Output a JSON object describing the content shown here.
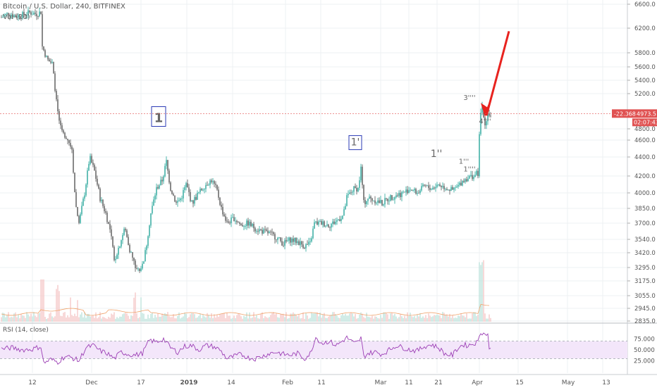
{
  "header": {
    "symbol_line": "Bitcoin / U.S. Dollar, 240, BITFINEX",
    "volume_label": "Vol (20)",
    "rsi_label": "RSI (14, close)"
  },
  "chart_data": {
    "type": "candlestick",
    "price_axis": {
      "ticks": [
        "6600.0",
        "6200.0",
        "5800.0",
        "5600.0",
        "5400.0",
        "5200.0",
        "4800.0",
        "4600.0",
        "4400.0",
        "4200.0",
        "4000.0",
        "3850.0",
        "3700.0",
        "3540.0",
        "3420.0",
        "3295.0",
        "3175.0",
        "3055.0",
        "2945.0",
        "2835.0"
      ]
    },
    "time_axis": {
      "ticks": [
        "12",
        "Dec",
        "17",
        "2019",
        "14",
        "Feb",
        "11",
        "Mar",
        "11",
        "21",
        "Apr",
        "15",
        "May",
        "13"
      ]
    },
    "price_path": [
      [
        0,
        6380
      ],
      [
        10,
        6450
      ],
      [
        20,
        6400
      ],
      [
        30,
        6420
      ],
      [
        40,
        6460
      ],
      [
        50,
        6440
      ],
      [
        56,
        6470
      ],
      [
        58,
        5900
      ],
      [
        65,
        5700
      ],
      [
        72,
        5650
      ],
      [
        78,
        5100
      ],
      [
        85,
        4750
      ],
      [
        92,
        4650
      ],
      [
        100,
        4500
      ],
      [
        105,
        3900
      ],
      [
        110,
        3700
      ],
      [
        118,
        4000
      ],
      [
        125,
        4400
      ],
      [
        132,
        4250
      ],
      [
        140,
        3950
      ],
      [
        148,
        3800
      ],
      [
        155,
        3600
      ],
      [
        160,
        3350
      ],
      [
        168,
        3500
      ],
      [
        175,
        3650
      ],
      [
        182,
        3450
      ],
      [
        190,
        3300
      ],
      [
        198,
        3260
      ],
      [
        205,
        3450
      ],
      [
        212,
        3800
      ],
      [
        220,
        4050
      ],
      [
        228,
        4150
      ],
      [
        234,
        4350
      ],
      [
        240,
        4050
      ],
      [
        248,
        3900
      ],
      [
        255,
        3950
      ],
      [
        262,
        4100
      ],
      [
        270,
        3900
      ],
      [
        280,
        4000
      ],
      [
        290,
        4100
      ],
      [
        298,
        4150
      ],
      [
        305,
        4050
      ],
      [
        312,
        3850
      ],
      [
        320,
        3700
      ],
      [
        330,
        3750
      ],
      [
        340,
        3680
      ],
      [
        350,
        3700
      ],
      [
        360,
        3650
      ],
      [
        370,
        3620
      ],
      [
        380,
        3600
      ],
      [
        390,
        3560
      ],
      [
        400,
        3500
      ],
      [
        410,
        3540
      ],
      [
        420,
        3520
      ],
      [
        430,
        3480
      ],
      [
        438,
        3500
      ],
      [
        444,
        3700
      ],
      [
        455,
        3700
      ],
      [
        465,
        3680
      ],
      [
        475,
        3720
      ],
      [
        485,
        3780
      ],
      [
        490,
        3950
      ],
      [
        500,
        4050
      ],
      [
        506,
        4050
      ],
      [
        510,
        4280
      ],
      [
        514,
        3900
      ],
      [
        520,
        3950
      ],
      [
        530,
        3930
      ],
      [
        540,
        3900
      ],
      [
        550,
        3950
      ],
      [
        560,
        3980
      ],
      [
        570,
        4000
      ],
      [
        580,
        4050
      ],
      [
        590,
        4000
      ],
      [
        600,
        4080
      ],
      [
        610,
        4050
      ],
      [
        620,
        4100
      ],
      [
        630,
        4060
      ],
      [
        640,
        4030
      ],
      [
        648,
        4080
      ],
      [
        655,
        4150
      ],
      [
        662,
        4180
      ],
      [
        670,
        4200
      ],
      [
        676,
        4230
      ],
      [
        679,
        4900
      ],
      [
        682,
        5050
      ],
      [
        686,
        4850
      ],
      [
        690,
        4980
      ],
      [
        694,
        4950
      ]
    ],
    "rsi": {
      "levels": [
        70,
        30
      ],
      "tick_labels": [
        "75.000",
        "50.000",
        "25.000"
      ],
      "path": [
        [
          0,
          52
        ],
        [
          15,
          55
        ],
        [
          30,
          50
        ],
        [
          45,
          52
        ],
        [
          56,
          58
        ],
        [
          60,
          20
        ],
        [
          70,
          28
        ],
        [
          80,
          22
        ],
        [
          90,
          35
        ],
        [
          100,
          32
        ],
        [
          110,
          25
        ],
        [
          120,
          55
        ],
        [
          130,
          60
        ],
        [
          140,
          48
        ],
        [
          150,
          42
        ],
        [
          160,
          30
        ],
        [
          170,
          45
        ],
        [
          180,
          40
        ],
        [
          190,
          38
        ],
        [
          200,
          42
        ],
        [
          210,
          72
        ],
        [
          220,
          68
        ],
        [
          230,
          75
        ],
        [
          240,
          55
        ],
        [
          250,
          45
        ],
        [
          260,
          58
        ],
        [
          270,
          60
        ],
        [
          280,
          50
        ],
        [
          290,
          60
        ],
        [
          300,
          58
        ],
        [
          310,
          50
        ],
        [
          320,
          30
        ],
        [
          330,
          35
        ],
        [
          340,
          40
        ],
        [
          350,
          32
        ],
        [
          360,
          30
        ],
        [
          370,
          35
        ],
        [
          380,
          42
        ],
        [
          390,
          45
        ],
        [
          400,
          40
        ],
        [
          410,
          38
        ],
        [
          420,
          42
        ],
        [
          430,
          30
        ],
        [
          440,
          45
        ],
        [
          445,
          80
        ],
        [
          455,
          65
        ],
        [
          465,
          70
        ],
        [
          475,
          60
        ],
        [
          485,
          72
        ],
        [
          490,
          78
        ],
        [
          500,
          65
        ],
        [
          506,
          68
        ],
        [
          510,
          78
        ],
        [
          514,
          35
        ],
        [
          520,
          42
        ],
        [
          530,
          45
        ],
        [
          540,
          40
        ],
        [
          550,
          50
        ],
        [
          560,
          60
        ],
        [
          570,
          55
        ],
        [
          580,
          50
        ],
        [
          590,
          48
        ],
        [
          600,
          58
        ],
        [
          610,
          62
        ],
        [
          620,
          55
        ],
        [
          630,
          40
        ],
        [
          640,
          38
        ],
        [
          648,
          55
        ],
        [
          655,
          62
        ],
        [
          662,
          60
        ],
        [
          670,
          65
        ],
        [
          676,
          68
        ],
        [
          679,
          92
        ],
        [
          682,
          90
        ],
        [
          686,
          85
        ],
        [
          690,
          88
        ]
      ]
    },
    "price_badges": {
      "change": "-22.368",
      "last_price": "4973.5",
      "countdown": "02:07:43"
    },
    "wave_labels": [
      {
        "text": "1",
        "boxed": true,
        "x_index": 231,
        "price": 4860
      },
      {
        "text": "1'",
        "boxed": true,
        "x_index": 510,
        "price": 4520
      },
      {
        "text": "1''",
        "boxed": false,
        "x_index": 625,
        "price": 4400
      },
      {
        "text": "1'''",
        "boxed": false,
        "x_index": 664,
        "price": 4330
      },
      {
        "text": "1''''",
        "boxed": false,
        "x_index": 672,
        "price": 4250
      },
      {
        "text": "3''''",
        "boxed": false,
        "x_index": 672,
        "price": 5130
      },
      {
        "text": "4''''",
        "boxed": false,
        "x_index": 694,
        "price": 4860
      }
    ],
    "arrow": {
      "from_price": 4950,
      "to_price": 6150,
      "color": "#e8231f"
    },
    "colors": {
      "up": "#26a69a",
      "down": "#555555",
      "rsi": "#9c3fb5",
      "rsi_band": "#f3e6fa",
      "badge": "#e05252",
      "label_box": "#2b3bb5"
    }
  }
}
